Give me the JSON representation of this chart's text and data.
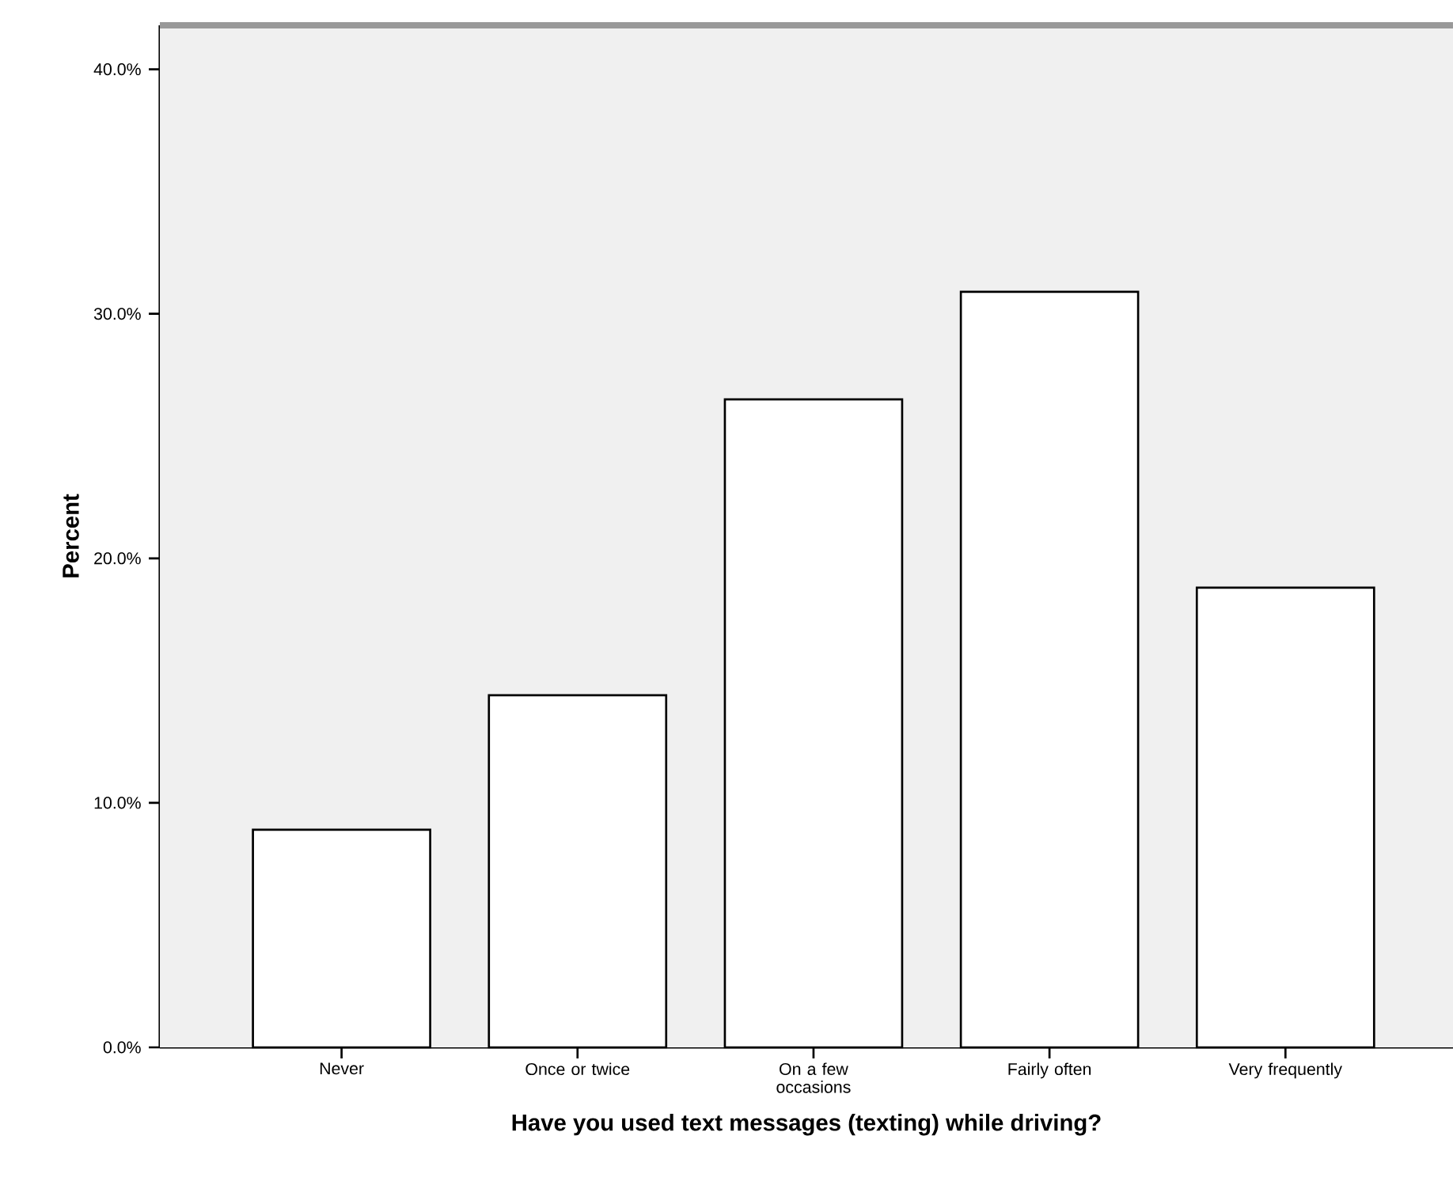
{
  "chart_data": {
    "type": "bar",
    "xlabel": "Have you used text messages (texting) while driving?",
    "ylabel": "Percent",
    "categories": [
      "Never",
      "Once or twice",
      "On a few occasions",
      "Fairly often",
      "Very frequently"
    ],
    "values": [
      8.9,
      14.4,
      26.5,
      30.9,
      18.8
    ],
    "color": "#ffffff",
    "ylim": [
      0,
      41.8
    ],
    "yticks": [
      {
        "value": 0,
        "label": "0.0%"
      },
      {
        "value": 10,
        "label": "10.0%"
      },
      {
        "value": 20,
        "label": "20.0%"
      },
      {
        "value": 30,
        "label": "30.0%"
      },
      {
        "value": 40,
        "label": "40.0%"
      }
    ]
  }
}
